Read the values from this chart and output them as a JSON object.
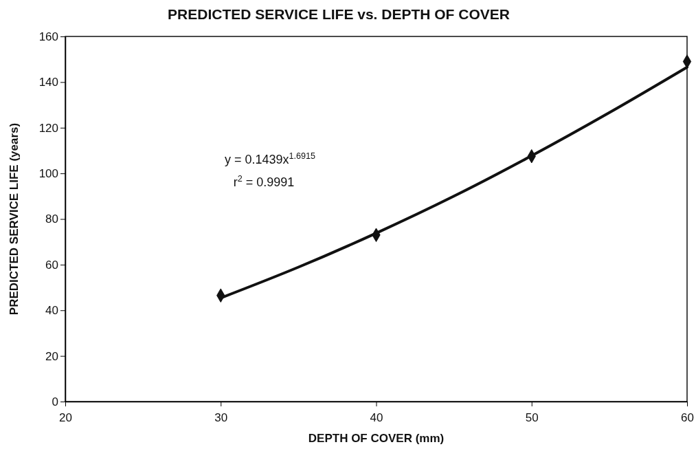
{
  "chart_data": {
    "type": "scatter",
    "title": "PREDICTED SERVICE LIFE vs. DEPTH OF COVER",
    "xlabel": "DEPTH OF COVER (mm)",
    "ylabel": "PREDICTED SERVICE LIFE (years)",
    "xlim": [
      20,
      60
    ],
    "xticks": [
      20,
      30,
      40,
      50,
      60
    ],
    "ylim": [
      0,
      160
    ],
    "yticks": [
      0,
      20,
      40,
      60,
      80,
      100,
      120,
      140,
      160
    ],
    "grid": false,
    "marker": "diamond",
    "series": [
      {
        "color": "#111111",
        "x": [
          30,
          40,
          50,
          60
        ],
        "values": [
          46.5,
          73,
          107.5,
          149
        ]
      },
      {
        "type": "line",
        "color": "#111111",
        "line_style": "solid",
        "marker": "none",
        "x": [
          30,
          35,
          40,
          45,
          50,
          55,
          60
        ],
        "values": [
          45.4,
          58.9,
          73.8,
          90.0,
          107.7,
          126.6,
          146.5
        ]
      }
    ],
    "annotations": [
      {
        "text": "y = 0.1439x$^{1.6915}$"
      },
      {
        "text": "r$^{2}$ = 0.9991"
      }
    ]
  }
}
